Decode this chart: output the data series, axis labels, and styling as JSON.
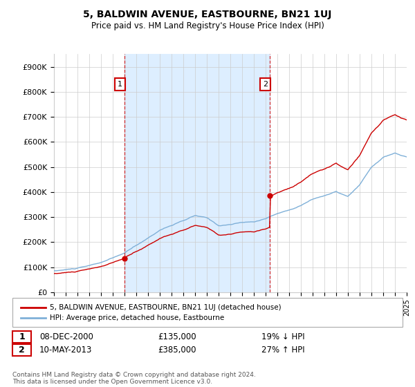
{
  "title": "5, BALDWIN AVENUE, EASTBOURNE, BN21 1UJ",
  "subtitle": "Price paid vs. HM Land Registry's House Price Index (HPI)",
  "ylabel_ticks": [
    "£0",
    "£100K",
    "£200K",
    "£300K",
    "£400K",
    "£500K",
    "£600K",
    "£700K",
    "£800K",
    "£900K"
  ],
  "ytick_values": [
    0,
    100000,
    200000,
    300000,
    400000,
    500000,
    600000,
    700000,
    800000,
    900000
  ],
  "ylim": [
    0,
    950000
  ],
  "x_start_year": 1995,
  "x_end_year": 2025,
  "sale1_year": 2001.0,
  "sale1_price": 135000,
  "sale1_label": "1",
  "sale2_year": 2013.37,
  "sale2_price": 385000,
  "sale2_label": "2",
  "red_color": "#cc0000",
  "blue_color": "#7fb0d8",
  "shade_color": "#ddeeff",
  "dashed_color": "#cc0000",
  "background_color": "#ffffff",
  "grid_color": "#cccccc",
  "legend_line1": "5, BALDWIN AVENUE, EASTBOURNE, BN21 1UJ (detached house)",
  "legend_line2": "HPI: Average price, detached house, Eastbourne",
  "table_row1_num": "1",
  "table_row1_date": "08-DEC-2000",
  "table_row1_price": "£135,000",
  "table_row1_hpi": "19% ↓ HPI",
  "table_row2_num": "2",
  "table_row2_date": "10-MAY-2013",
  "table_row2_price": "£385,000",
  "table_row2_hpi": "27% ↑ HPI",
  "footer": "Contains HM Land Registry data © Crown copyright and database right 2024.\nThis data is licensed under the Open Government Licence v3.0."
}
